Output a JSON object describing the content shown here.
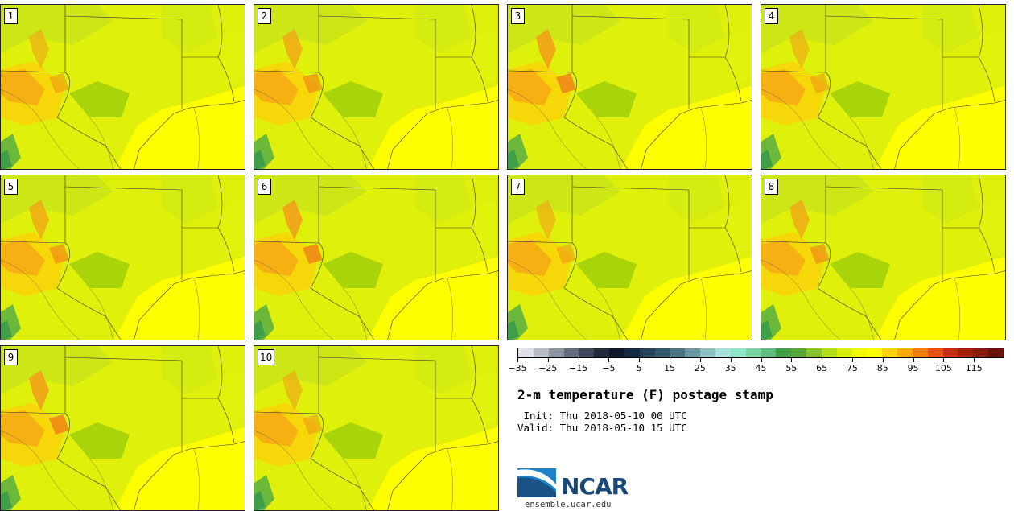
{
  "panels": [
    {
      "label": "1"
    },
    {
      "label": "2"
    },
    {
      "label": "3"
    },
    {
      "label": "4"
    },
    {
      "label": "5"
    },
    {
      "label": "6"
    },
    {
      "label": "7"
    },
    {
      "label": "8"
    },
    {
      "label": "9"
    },
    {
      "label": "10"
    }
  ],
  "colorbar": {
    "colors": [
      "#dde0e8",
      "#b8bcc6",
      "#8e94a3",
      "#636b7d",
      "#3e4658",
      "#232a3a",
      "#0f1a2e",
      "#162a44",
      "#24425a",
      "#34566a",
      "#4a7382",
      "#6a98a4",
      "#8ebfc4",
      "#a8e0dc",
      "#92e4c8",
      "#7bd1a2",
      "#62bb7e",
      "#44a048",
      "#5aa83a",
      "#86c42a",
      "#b5dc1c",
      "#d9ed0a",
      "#f2f702",
      "#ffff00",
      "#fad20a",
      "#f8a90c",
      "#f47d0c",
      "#e8510c",
      "#c92c0c",
      "#a81c0c",
      "#8a1a0c",
      "#6b1308"
    ],
    "tick_labels": [
      "−35",
      "−25",
      "−15",
      "−5",
      "5",
      "15",
      "25",
      "35",
      "45",
      "55",
      "65",
      "75",
      "85",
      "95",
      "105",
      "115"
    ]
  },
  "info": {
    "title": "2-m temperature (F) postage stamp",
    "init": " Init: Thu 2018-05-10 00 UTC",
    "valid": "Valid: Thu 2018-05-10 15 UTC"
  },
  "logo": {
    "name": "NCAR",
    "site": "ensemble.ucar.edu",
    "primary_color": "#1a4a7a",
    "swoosh_color": "#1e82c8"
  }
}
